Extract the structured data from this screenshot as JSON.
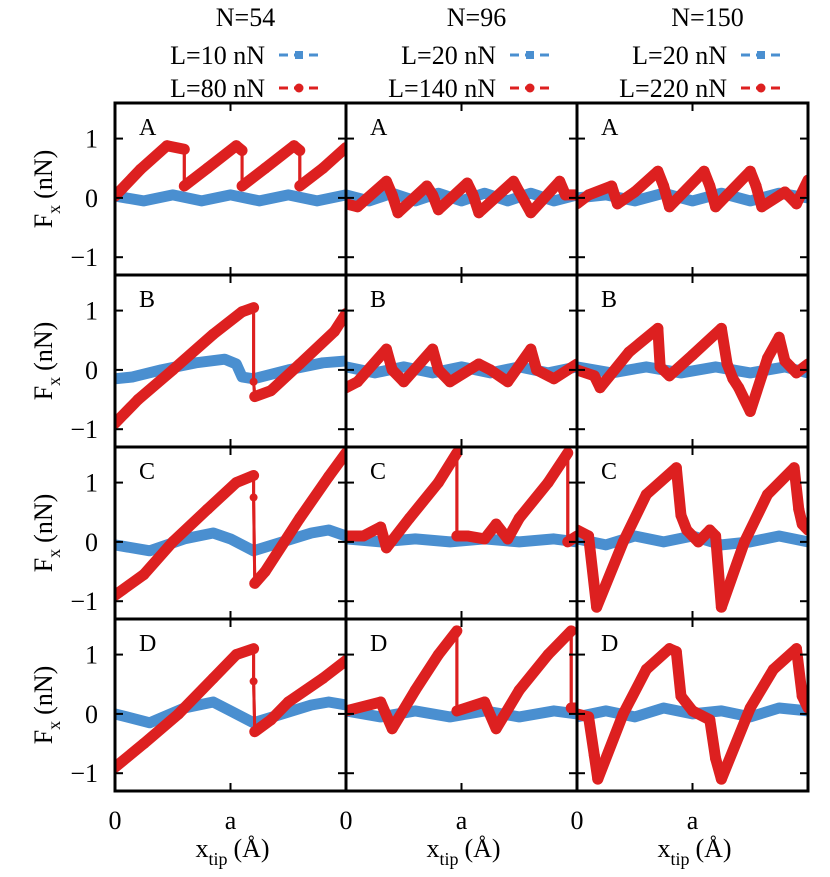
{
  "chart_data": {
    "type": "line",
    "grid": false,
    "legend_placement": "top",
    "xlabel": "x",
    "xlabel_sub": "tip",
    "xlabel_unit": "(Å)",
    "ylabel": "F",
    "ylabel_sub": "x",
    "ylabel_unit": "(nN)",
    "ylim": [
      -1.3,
      1.6
    ],
    "yticks": [
      -1,
      0,
      1
    ],
    "ytick_labels": [
      "−1",
      "0",
      "1"
    ],
    "xlim": [
      0,
      2.0
    ],
    "xticks": [
      0,
      1
    ],
    "xtick_labels": [
      "0",
      "a"
    ],
    "series_colors": {
      "low": "#4a8fd0",
      "high": "#dd2020"
    },
    "columns": [
      {
        "title": "N=54",
        "legend": [
          "L=10 nN",
          "L=80 nN"
        ]
      },
      {
        "title": "N=96",
        "legend": [
          "L=20 nN",
          "L=140 nN"
        ]
      },
      {
        "title": "N=150",
        "legend": [
          "L=20 nN",
          "L=220 nN"
        ]
      }
    ],
    "rows": [
      "A",
      "B",
      "C",
      "D"
    ],
    "panels": [
      {
        "row": "A",
        "col": 0,
        "low": [
          [
            0,
            0.03
          ],
          [
            0.25,
            -0.05
          ],
          [
            0.5,
            0.05
          ],
          [
            0.75,
            -0.05
          ],
          [
            1.0,
            0.05
          ],
          [
            1.25,
            -0.05
          ],
          [
            1.5,
            0.05
          ],
          [
            1.75,
            -0.05
          ],
          [
            2.0,
            0.05
          ]
        ],
        "high": [
          [
            0,
            0.03
          ],
          [
            0.22,
            0.48
          ],
          [
            0.45,
            0.88
          ],
          [
            0.6,
            0.82
          ],
          [
            0.6,
            0.2
          ],
          [
            0.8,
            0.5
          ],
          [
            1.05,
            0.88
          ],
          [
            1.1,
            0.8
          ],
          [
            1.1,
            0.2
          ],
          [
            1.3,
            0.5
          ],
          [
            1.55,
            0.88
          ],
          [
            1.6,
            0.8
          ],
          [
            1.6,
            0.2
          ],
          [
            1.8,
            0.5
          ],
          [
            2.0,
            0.85
          ]
        ]
      },
      {
        "row": "A",
        "col": 1,
        "low": [
          [
            0,
            0.05
          ],
          [
            0.2,
            -0.05
          ],
          [
            0.4,
            0.08
          ],
          [
            0.6,
            -0.05
          ],
          [
            0.8,
            0.08
          ],
          [
            1.0,
            -0.05
          ],
          [
            1.2,
            0.08
          ],
          [
            1.4,
            -0.05
          ],
          [
            1.6,
            0.08
          ],
          [
            1.8,
            -0.05
          ],
          [
            2.0,
            0.05
          ]
        ],
        "high": [
          [
            0,
            -0.1
          ],
          [
            0.1,
            -0.15
          ],
          [
            0.35,
            0.28
          ],
          [
            0.4,
            0.05
          ],
          [
            0.45,
            -0.25
          ],
          [
            0.7,
            0.2
          ],
          [
            0.75,
            0.05
          ],
          [
            0.8,
            -0.2
          ],
          [
            1.05,
            0.25
          ],
          [
            1.1,
            0.05
          ],
          [
            1.15,
            -0.25
          ],
          [
            1.45,
            0.28
          ],
          [
            1.5,
            0.1
          ],
          [
            1.6,
            -0.25
          ],
          [
            1.85,
            0.28
          ],
          [
            1.9,
            0.05
          ],
          [
            2.0,
            0.05
          ]
        ]
      },
      {
        "row": "A",
        "col": 2,
        "low": [
          [
            0,
            0.0
          ],
          [
            0.25,
            0.05
          ],
          [
            0.5,
            -0.05
          ],
          [
            0.75,
            0.08
          ],
          [
            1.0,
            -0.05
          ],
          [
            1.25,
            0.08
          ],
          [
            1.5,
            -0.05
          ],
          [
            1.75,
            0.08
          ],
          [
            2.0,
            0.0
          ]
        ],
        "high": [
          [
            0,
            -0.1
          ],
          [
            0.1,
            0.05
          ],
          [
            0.3,
            0.2
          ],
          [
            0.35,
            -0.1
          ],
          [
            0.5,
            0.1
          ],
          [
            0.7,
            0.45
          ],
          [
            0.75,
            0.2
          ],
          [
            0.8,
            -0.15
          ],
          [
            1.1,
            0.45
          ],
          [
            1.15,
            0.2
          ],
          [
            1.2,
            -0.15
          ],
          [
            1.5,
            0.45
          ],
          [
            1.55,
            0.2
          ],
          [
            1.6,
            -0.15
          ],
          [
            1.8,
            0.1
          ],
          [
            1.9,
            -0.1
          ],
          [
            2.0,
            0.3
          ]
        ]
      },
      {
        "row": "B",
        "col": 0,
        "low": [
          [
            0,
            -0.15
          ],
          [
            0.15,
            -0.12
          ],
          [
            0.4,
            0.0
          ],
          [
            0.7,
            0.12
          ],
          [
            0.95,
            0.18
          ],
          [
            1.05,
            0.1
          ],
          [
            1.1,
            -0.12
          ],
          [
            1.2,
            -0.15
          ],
          [
            1.5,
            0.0
          ],
          [
            1.8,
            0.12
          ],
          [
            2.0,
            0.15
          ]
        ],
        "high": [
          [
            0,
            -0.9
          ],
          [
            0.2,
            -0.5
          ],
          [
            0.5,
            0.0
          ],
          [
            0.85,
            0.6
          ],
          [
            1.1,
            0.98
          ],
          [
            1.2,
            1.05
          ],
          [
            1.2,
            -0.2
          ],
          [
            1.21,
            -0.45
          ],
          [
            1.35,
            -0.35
          ],
          [
            1.6,
            0.1
          ],
          [
            1.9,
            0.65
          ],
          [
            2.0,
            0.95
          ]
        ]
      },
      {
        "row": "B",
        "col": 1,
        "low": [
          [
            0,
            0.05
          ],
          [
            0.25,
            -0.05
          ],
          [
            0.5,
            0.05
          ],
          [
            0.75,
            -0.05
          ],
          [
            1.0,
            0.05
          ],
          [
            1.25,
            -0.05
          ],
          [
            1.5,
            0.05
          ],
          [
            1.75,
            -0.05
          ],
          [
            2.0,
            0.05
          ]
        ],
        "high": [
          [
            0,
            -0.3
          ],
          [
            0.1,
            -0.2
          ],
          [
            0.35,
            0.35
          ],
          [
            0.4,
            0.0
          ],
          [
            0.5,
            -0.2
          ],
          [
            0.75,
            0.35
          ],
          [
            0.8,
            0.0
          ],
          [
            0.9,
            -0.2
          ],
          [
            1.15,
            0.1
          ],
          [
            1.25,
            0.0
          ],
          [
            1.4,
            -0.2
          ],
          [
            1.6,
            0.35
          ],
          [
            1.65,
            0.0
          ],
          [
            1.8,
            -0.15
          ],
          [
            2.0,
            0.1
          ]
        ]
      },
      {
        "row": "B",
        "col": 2,
        "low": [
          [
            0,
            0.05
          ],
          [
            0.3,
            -0.05
          ],
          [
            0.6,
            0.05
          ],
          [
            0.9,
            -0.05
          ],
          [
            1.2,
            0.05
          ],
          [
            1.5,
            -0.05
          ],
          [
            1.8,
            0.05
          ],
          [
            2.0,
            -0.05
          ]
        ],
        "high": [
          [
            0,
            0.0
          ],
          [
            0.15,
            -0.1
          ],
          [
            0.2,
            -0.3
          ],
          [
            0.45,
            0.3
          ],
          [
            0.7,
            0.7
          ],
          [
            0.72,
            0.05
          ],
          [
            0.8,
            -0.1
          ],
          [
            1.0,
            0.25
          ],
          [
            1.25,
            0.7
          ],
          [
            1.3,
            0.1
          ],
          [
            1.35,
            -0.15
          ],
          [
            1.4,
            -0.3
          ],
          [
            1.5,
            -0.7
          ],
          [
            1.65,
            0.2
          ],
          [
            1.75,
            0.55
          ],
          [
            1.8,
            0.15
          ],
          [
            1.9,
            -0.05
          ],
          [
            2.0,
            0.1
          ]
        ]
      },
      {
        "row": "C",
        "col": 0,
        "low": [
          [
            0,
            -0.05
          ],
          [
            0.3,
            -0.15
          ],
          [
            0.6,
            0.05
          ],
          [
            0.85,
            0.15
          ],
          [
            1.0,
            0.05
          ],
          [
            1.2,
            -0.15
          ],
          [
            1.45,
            0.0
          ],
          [
            1.7,
            0.15
          ],
          [
            1.85,
            0.2
          ],
          [
            2.0,
            0.1
          ]
        ],
        "high": [
          [
            0,
            -0.9
          ],
          [
            0.25,
            -0.55
          ],
          [
            0.5,
            0.0
          ],
          [
            0.8,
            0.55
          ],
          [
            1.05,
            1.0
          ],
          [
            1.2,
            1.12
          ],
          [
            1.2,
            0.75
          ],
          [
            1.21,
            -0.7
          ],
          [
            1.3,
            -0.5
          ],
          [
            1.6,
            0.4
          ],
          [
            1.85,
            1.1
          ],
          [
            2.0,
            1.5
          ]
        ]
      },
      {
        "row": "C",
        "col": 1,
        "low": [
          [
            0,
            0.05
          ],
          [
            0.3,
            0.0
          ],
          [
            0.6,
            0.05
          ],
          [
            0.9,
            0.0
          ],
          [
            1.2,
            0.05
          ],
          [
            1.5,
            0.0
          ],
          [
            1.8,
            0.05
          ],
          [
            2.0,
            0.0
          ]
        ],
        "high": [
          [
            0,
            0.1
          ],
          [
            0.15,
            0.1
          ],
          [
            0.3,
            0.25
          ],
          [
            0.35,
            -0.1
          ],
          [
            0.55,
            0.4
          ],
          [
            0.8,
            1.0
          ],
          [
            0.96,
            1.5
          ],
          [
            0.96,
            0.1
          ],
          [
            1.05,
            0.1
          ],
          [
            1.2,
            0.05
          ],
          [
            1.3,
            0.3
          ],
          [
            1.4,
            0.05
          ],
          [
            1.5,
            0.4
          ],
          [
            1.75,
            1.0
          ],
          [
            1.92,
            1.5
          ],
          [
            1.92,
            0.0
          ],
          [
            2.0,
            0.1
          ]
        ]
      },
      {
        "row": "C",
        "col": 2,
        "low": [
          [
            0,
            0.05
          ],
          [
            0.25,
            -0.05
          ],
          [
            0.5,
            0.1
          ],
          [
            0.75,
            0.0
          ],
          [
            1.0,
            0.1
          ],
          [
            1.25,
            -0.05
          ],
          [
            1.5,
            0.0
          ],
          [
            1.75,
            0.1
          ],
          [
            2.0,
            0.0
          ]
        ],
        "high": [
          [
            0,
            0.2
          ],
          [
            0.1,
            0.1
          ],
          [
            0.17,
            -1.1
          ],
          [
            0.4,
            0.0
          ],
          [
            0.6,
            0.8
          ],
          [
            0.86,
            1.25
          ],
          [
            0.9,
            0.45
          ],
          [
            0.95,
            0.2
          ],
          [
            1.05,
            0.0
          ],
          [
            1.15,
            0.2
          ],
          [
            1.2,
            0.1
          ],
          [
            1.25,
            -1.1
          ],
          [
            1.45,
            0.0
          ],
          [
            1.65,
            0.8
          ],
          [
            1.88,
            1.25
          ],
          [
            1.92,
            0.55
          ],
          [
            1.95,
            0.3
          ],
          [
            2.0,
            0.2
          ]
        ]
      },
      {
        "row": "D",
        "col": 0,
        "low": [
          [
            0,
            0.0
          ],
          [
            0.3,
            -0.15
          ],
          [
            0.6,
            0.1
          ],
          [
            0.85,
            0.2
          ],
          [
            1.0,
            0.05
          ],
          [
            1.2,
            -0.15
          ],
          [
            1.45,
            0.0
          ],
          [
            1.7,
            0.15
          ],
          [
            1.85,
            0.2
          ],
          [
            2.0,
            0.15
          ]
        ],
        "high": [
          [
            0,
            -0.9
          ],
          [
            0.25,
            -0.5
          ],
          [
            0.55,
            0.0
          ],
          [
            0.85,
            0.6
          ],
          [
            1.05,
            1.0
          ],
          [
            1.2,
            1.1
          ],
          [
            1.2,
            0.55
          ],
          [
            1.21,
            -0.3
          ],
          [
            1.35,
            -0.1
          ],
          [
            1.5,
            0.2
          ],
          [
            1.8,
            0.6
          ],
          [
            2.0,
            0.9
          ]
        ]
      },
      {
        "row": "D",
        "col": 1,
        "low": [
          [
            0,
            0.05
          ],
          [
            0.3,
            -0.05
          ],
          [
            0.6,
            0.05
          ],
          [
            0.9,
            -0.05
          ],
          [
            1.2,
            0.05
          ],
          [
            1.5,
            -0.05
          ],
          [
            1.8,
            0.05
          ],
          [
            2.0,
            0.0
          ]
        ],
        "high": [
          [
            0,
            0.05
          ],
          [
            0.3,
            0.2
          ],
          [
            0.4,
            -0.25
          ],
          [
            0.6,
            0.4
          ],
          [
            0.8,
            1.0
          ],
          [
            0.96,
            1.4
          ],
          [
            0.96,
            0.05
          ],
          [
            1.2,
            0.2
          ],
          [
            1.3,
            -0.25
          ],
          [
            1.5,
            0.4
          ],
          [
            1.75,
            1.0
          ],
          [
            1.95,
            1.4
          ],
          [
            1.95,
            0.1
          ],
          [
            2.0,
            0.1
          ]
        ]
      },
      {
        "row": "D",
        "col": 2,
        "low": [
          [
            0,
            -0.05
          ],
          [
            0.25,
            0.05
          ],
          [
            0.5,
            -0.05
          ],
          [
            0.75,
            0.1
          ],
          [
            1.0,
            0.0
          ],
          [
            1.25,
            0.05
          ],
          [
            1.5,
            -0.05
          ],
          [
            1.75,
            0.1
          ],
          [
            2.0,
            0.05
          ]
        ],
        "high": [
          [
            0,
            0.0
          ],
          [
            0.1,
            -0.05
          ],
          [
            0.15,
            -0.7
          ],
          [
            0.18,
            -1.1
          ],
          [
            0.4,
            0.0
          ],
          [
            0.6,
            0.75
          ],
          [
            0.8,
            1.1
          ],
          [
            0.86,
            1.05
          ],
          [
            0.9,
            0.3
          ],
          [
            1.0,
            0.05
          ],
          [
            1.15,
            -0.1
          ],
          [
            1.2,
            -0.75
          ],
          [
            1.25,
            -1.1
          ],
          [
            1.5,
            0.1
          ],
          [
            1.7,
            0.75
          ],
          [
            1.9,
            1.1
          ],
          [
            1.95,
            0.3
          ],
          [
            2.0,
            0.1
          ]
        ]
      }
    ]
  }
}
